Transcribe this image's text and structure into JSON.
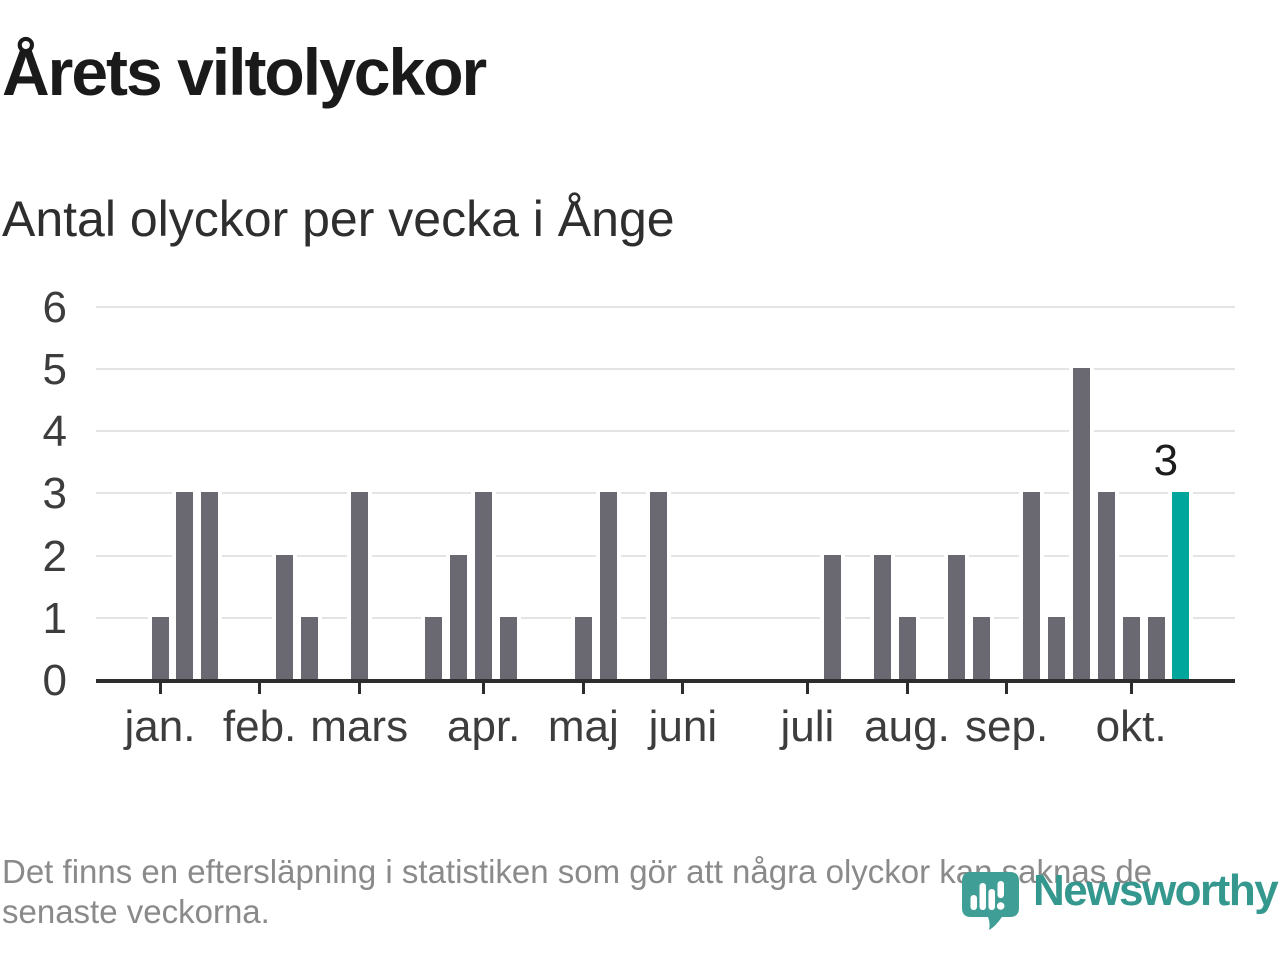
{
  "chart_data": {
    "type": "bar",
    "title": "Årets viltolyckor",
    "subtitle": "Antal olyckor per vecka i Ånge",
    "x_unit": "week",
    "categories_note": "one bar per week, jan-okt",
    "values": [
      1,
      3,
      3,
      0,
      0,
      2,
      1,
      0,
      3,
      0,
      0,
      1,
      2,
      3,
      1,
      0,
      0,
      1,
      3,
      0,
      3,
      0,
      0,
      0,
      0,
      0,
      0,
      2,
      0,
      2,
      1,
      0,
      2,
      1,
      0,
      3,
      1,
      5,
      3,
      1,
      1,
      3
    ],
    "highlight_index": 41,
    "highlight_value_label": "3",
    "ylim": [
      0,
      6
    ],
    "yticks": [
      0,
      1,
      2,
      3,
      4,
      5,
      6
    ],
    "grid": "horizontal",
    "legend": "none",
    "month_ticks": [
      {
        "label": "jan.",
        "week": 0
      },
      {
        "label": "feb.",
        "week": 4
      },
      {
        "label": "mars",
        "week": 8
      },
      {
        "label": "apr.",
        "week": 13
      },
      {
        "label": "maj",
        "week": 17
      },
      {
        "label": "juni",
        "week": 21
      },
      {
        "label": "juli",
        "week": 26
      },
      {
        "label": "aug.",
        "week": 30
      },
      {
        "label": "sep.",
        "week": 34
      },
      {
        "label": "okt.",
        "week": 39
      }
    ],
    "colors": {
      "bar": "#6a6972",
      "highlight": "#00a59b",
      "gridline": "#e4e4e4",
      "axis": "#2d2d2d",
      "axis_label": "#3d3d3d",
      "value_label": "#1d1d1d",
      "title": "#1a1a1a",
      "subtitle": "#2e2e2e"
    }
  },
  "footer": {
    "lines": [
      "Det finns en eftersläpning i statistiken som gör att några olyckor kan saknas de",
      "senaste veckorna."
    ],
    "color": "#8a8a8a"
  },
  "logo": {
    "wordmark": "Newsworthy",
    "icon_color": "#3f9e96",
    "wordmark_color": "#35988f"
  }
}
